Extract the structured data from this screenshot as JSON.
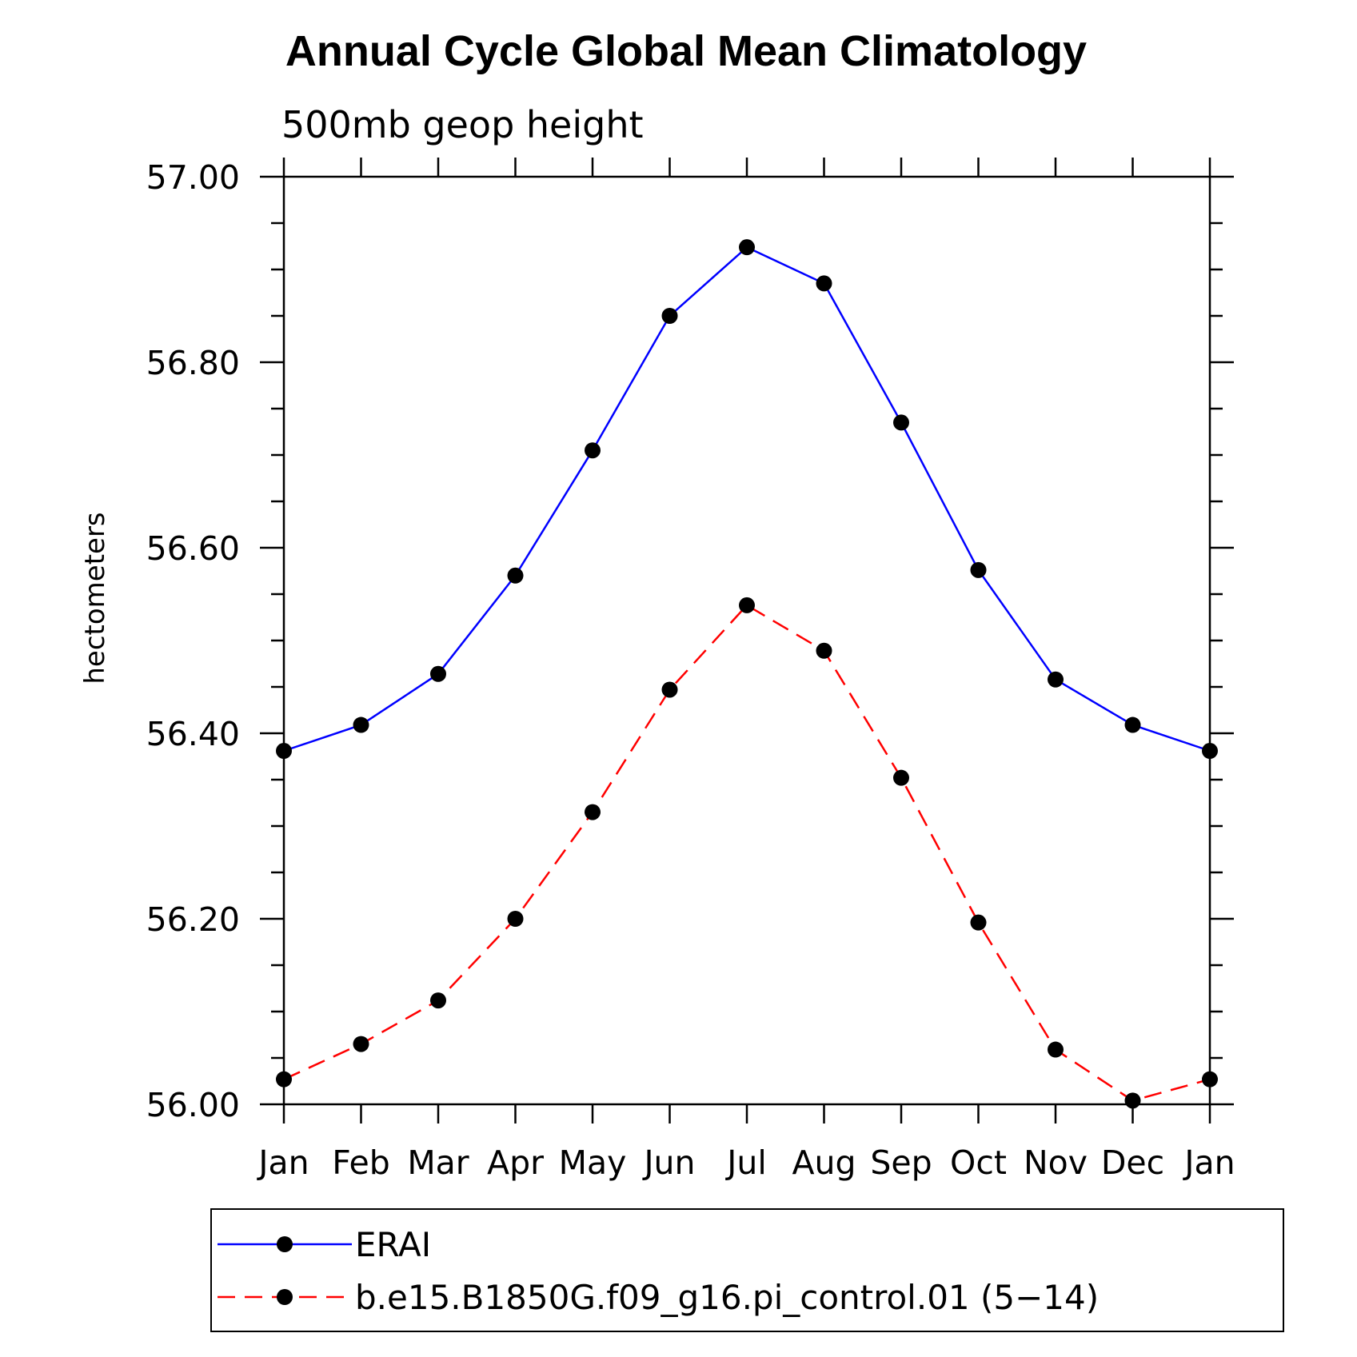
{
  "chart_data": {
    "type": "line",
    "title": "Annual Cycle Global Mean Climatology",
    "subtitle": "500mb geop height",
    "xlabel": "",
    "ylabel": "hectometers",
    "categories": [
      "Jan",
      "Feb",
      "Mar",
      "Apr",
      "May",
      "Jun",
      "Jul",
      "Aug",
      "Sep",
      "Oct",
      "Nov",
      "Dec",
      "Jan"
    ],
    "ylim": [
      56.0,
      57.0
    ],
    "y_ticks": [
      "56.00",
      "56.20",
      "56.40",
      "56.60",
      "56.80",
      "57.00"
    ],
    "legend_placement": "bottom",
    "grid": false,
    "series": [
      {
        "name": "ERAI",
        "color": "#0000ff",
        "line_style": "solid",
        "values": [
          56.381,
          56.409,
          56.464,
          56.57,
          56.705,
          56.85,
          56.924,
          56.885,
          56.735,
          56.576,
          56.458,
          56.409,
          56.381
        ]
      },
      {
        "name": "b.e15.B1850G.f09_g16.pi_control.01 (5−14)",
        "color": "#ff0000",
        "line_style": "dashed",
        "values": [
          56.027,
          56.065,
          56.112,
          56.2,
          56.315,
          56.447,
          56.538,
          56.489,
          56.352,
          56.196,
          56.059,
          56.004,
          56.027
        ]
      }
    ]
  }
}
